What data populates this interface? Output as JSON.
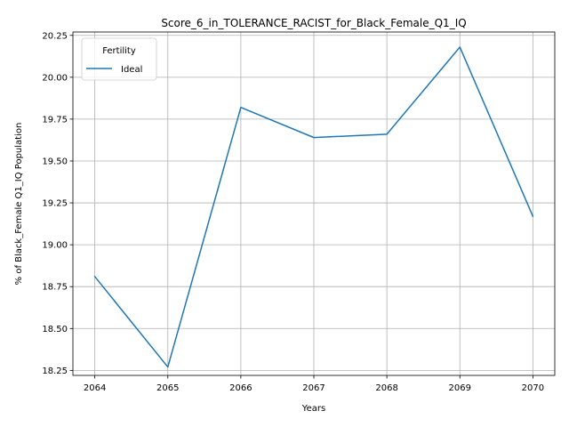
{
  "chart_data": {
    "type": "line",
    "title": "Score_6_in_TOLERANCE_RACIST_for_Black_Female_Q1_IQ",
    "xlabel": "Years",
    "ylabel": "% of Black_Female Q1_IQ Population",
    "x": [
      2064,
      2065,
      2066,
      2067,
      2068,
      2069,
      2070
    ],
    "xticks": [
      "2064",
      "2065",
      "2066",
      "2067",
      "2068",
      "2069",
      "2070"
    ],
    "xlim": [
      2063.7,
      2070.3
    ],
    "ylim": [
      18.22,
      20.27
    ],
    "yticks": [
      "18.25",
      "18.50",
      "18.75",
      "19.00",
      "19.25",
      "19.50",
      "19.75",
      "20.00",
      "20.25"
    ],
    "grid": true,
    "legend": {
      "title": "Fertility",
      "placement": "top-left"
    },
    "series": [
      {
        "name": "Ideal",
        "color": "#1f77b4",
        "values": [
          18.81,
          18.27,
          19.82,
          19.64,
          19.66,
          20.18,
          19.17
        ]
      }
    ]
  }
}
